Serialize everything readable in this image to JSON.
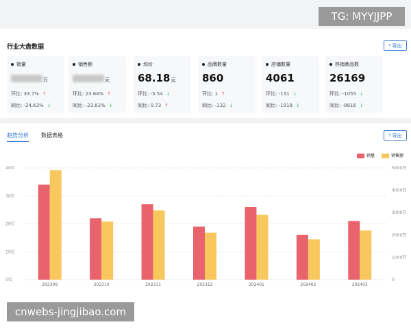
{
  "watermarks": {
    "top": "TG: MYYJJPP",
    "bottom": "cnwebs-jingjibao.com"
  },
  "overview": {
    "title": "行业大盘数据",
    "export_label": "导出",
    "cards": [
      {
        "label": "销量",
        "value": "",
        "unit": "万",
        "hoq_label": "环比:",
        "hoq": "33.7%",
        "hoq_dir": "up",
        "yoy_label": "同比:",
        "yoy": "-24.63%",
        "yoy_dir": "down"
      },
      {
        "label": "销售额",
        "value": "",
        "unit": "元",
        "hoq_label": "环比:",
        "hoq": "23.64%",
        "hoq_dir": "up",
        "yoy_label": "同比:",
        "yoy": "-23.82%",
        "yoy_dir": "down"
      },
      {
        "label": "均价",
        "value": "68.18",
        "unit": "元",
        "hoq_label": "环比:",
        "hoq": "-5.54",
        "hoq_dir": "down",
        "yoy_label": "同比:",
        "yoy": "0.73",
        "yoy_dir": "up"
      },
      {
        "label": "品牌数量",
        "value": "860",
        "unit": "",
        "hoq_label": "环比:",
        "hoq": "1",
        "hoq_dir": "up",
        "yoy_label": "同比:",
        "yoy": "-132",
        "yoy_dir": "down"
      },
      {
        "label": "店铺数量",
        "value": "4061",
        "unit": "",
        "hoq_label": "环比:",
        "hoq": "-131",
        "hoq_dir": "down",
        "yoy_label": "同比:",
        "yoy": "-1918",
        "yoy_dir": "down"
      },
      {
        "label": "热销商品数",
        "value": "26169",
        "unit": "",
        "hoq_label": "环比:",
        "hoq": "-1055",
        "hoq_dir": "down",
        "yoy_label": "同比:",
        "yoy": "-8816",
        "yoy_dir": "down"
      }
    ]
  },
  "analysis": {
    "tabs": [
      "趋势分析",
      "数据表格"
    ],
    "export_label": "导出"
  },
  "chart_data": {
    "type": "bar",
    "categories": [
      "202309",
      "202310",
      "202311",
      "202312",
      "202401",
      "202402",
      "202403"
    ],
    "series": [
      {
        "name": "销量",
        "color": "#e8636b",
        "axis": "left",
        "values": [
          34,
          22,
          27,
          19,
          26,
          16,
          21
        ]
      },
      {
        "name": "销售额",
        "color": "#f8c75d",
        "axis": "right",
        "values": [
          4900,
          2600,
          3100,
          2100,
          2900,
          1800,
          2200
        ]
      }
    ],
    "y_left": {
      "ticks": [
        "0亿",
        "10亿",
        "20亿",
        "30亿",
        "40亿"
      ],
      "range": [
        0,
        40
      ]
    },
    "y_right": {
      "ticks": [
        "0",
        "1000万",
        "2000万",
        "3000万",
        "4000万",
        "5000万"
      ],
      "range": [
        0,
        5000
      ]
    },
    "legend_position": "top-right",
    "grid": true
  }
}
